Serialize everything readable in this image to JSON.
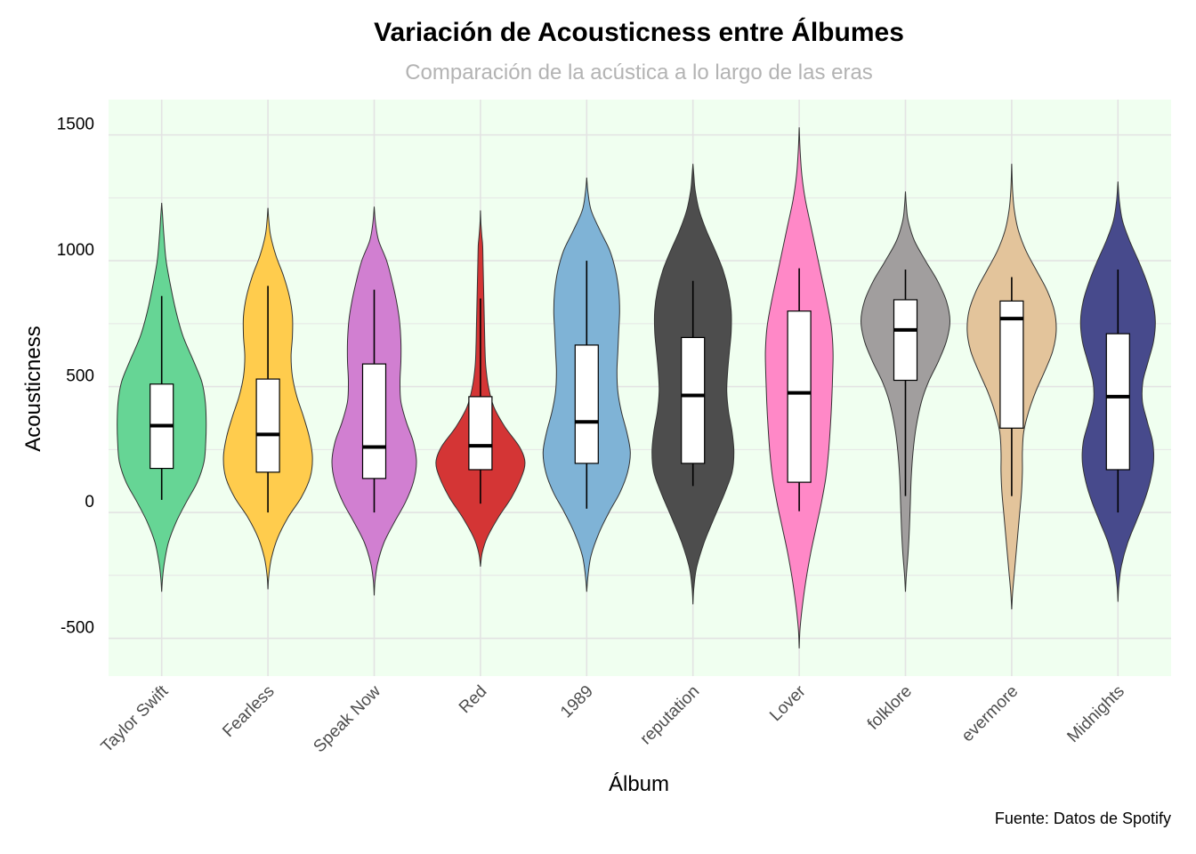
{
  "chart_data": {
    "type": "violin",
    "title": "Variación de Acousticness entre Álbumes",
    "subtitle": "Comparación de la acústica a lo largo de las eras",
    "xlabel": "Álbum",
    "ylabel": "Acousticness",
    "caption": "Fuente: Datos de Spotify",
    "ylim": [
      -650,
      1640
    ],
    "yticks": [
      -500,
      0,
      500,
      1000,
      1500
    ],
    "grid": true,
    "legend": "none",
    "panel_background": "#f0fff0",
    "categories": [
      "Taylor Swift",
      "Fearless",
      "Speak Now",
      "Red",
      "1989",
      "reputation",
      "Lover",
      "folklore",
      "evermore",
      "Midnights"
    ],
    "series": [
      {
        "album": "Taylor Swift",
        "color": "#66d595",
        "violin": {
          "ymin": -315,
          "ymax": 1230,
          "profile": [
            [
              -315,
              0
            ],
            [
              -260,
              0.02
            ],
            [
              -200,
              0.06
            ],
            [
              -120,
              0.15
            ],
            [
              -40,
              0.32
            ],
            [
              40,
              0.55
            ],
            [
              120,
              0.8
            ],
            [
              200,
              0.95
            ],
            [
              280,
              0.99
            ],
            [
              360,
              1.0
            ],
            [
              440,
              0.98
            ],
            [
              520,
              0.9
            ],
            [
              600,
              0.72
            ],
            [
              700,
              0.48
            ],
            [
              800,
              0.32
            ],
            [
              900,
              0.2
            ],
            [
              1000,
              0.1
            ],
            [
              1100,
              0.05
            ],
            [
              1180,
              0.02
            ],
            [
              1230,
              0
            ]
          ]
        },
        "box": {
          "min": 50,
          "q1": 175,
          "median": 345,
          "q3": 510,
          "max": 860
        }
      },
      {
        "album": "Fearless",
        "color": "#ffcc4d",
        "violin": {
          "ymin": -305,
          "ymax": 1210,
          "profile": [
            [
              -305,
              0
            ],
            [
              -250,
              0.02
            ],
            [
              -180,
              0.08
            ],
            [
              -100,
              0.22
            ],
            [
              -20,
              0.45
            ],
            [
              60,
              0.75
            ],
            [
              140,
              0.95
            ],
            [
              220,
              1.0
            ],
            [
              300,
              0.93
            ],
            [
              380,
              0.8
            ],
            [
              460,
              0.65
            ],
            [
              540,
              0.55
            ],
            [
              620,
              0.52
            ],
            [
              700,
              0.55
            ],
            [
              780,
              0.55
            ],
            [
              860,
              0.48
            ],
            [
              940,
              0.35
            ],
            [
              1020,
              0.18
            ],
            [
              1100,
              0.06
            ],
            [
              1160,
              0.02
            ],
            [
              1210,
              0
            ]
          ]
        },
        "box": {
          "min": 0,
          "q1": 160,
          "median": 310,
          "q3": 530,
          "max": 900
        }
      },
      {
        "album": "Speak Now",
        "color": "#d17fd1",
        "violin": {
          "ymin": -330,
          "ymax": 1215,
          "profile": [
            [
              -330,
              0
            ],
            [
              -270,
              0.02
            ],
            [
              -200,
              0.08
            ],
            [
              -120,
              0.22
            ],
            [
              -40,
              0.45
            ],
            [
              40,
              0.7
            ],
            [
              120,
              0.88
            ],
            [
              200,
              0.95
            ],
            [
              280,
              0.88
            ],
            [
              360,
              0.72
            ],
            [
              440,
              0.6
            ],
            [
              520,
              0.58
            ],
            [
              600,
              0.6
            ],
            [
              680,
              0.6
            ],
            [
              760,
              0.57
            ],
            [
              840,
              0.5
            ],
            [
              920,
              0.4
            ],
            [
              1000,
              0.28
            ],
            [
              1080,
              0.1
            ],
            [
              1150,
              0.03
            ],
            [
              1215,
              0
            ]
          ]
        },
        "box": {
          "min": 0,
          "q1": 135,
          "median": 260,
          "q3": 590,
          "max": 885
        }
      },
      {
        "album": "Red",
        "color": "#d43535",
        "violin": {
          "ymin": -215,
          "ymax": 1200,
          "profile": [
            [
              -215,
              0
            ],
            [
              -160,
              0.04
            ],
            [
              -100,
              0.15
            ],
            [
              -20,
              0.4
            ],
            [
              60,
              0.7
            ],
            [
              140,
              0.92
            ],
            [
              200,
              1.0
            ],
            [
              260,
              0.88
            ],
            [
              340,
              0.55
            ],
            [
              420,
              0.3
            ],
            [
              500,
              0.18
            ],
            [
              580,
              0.12
            ],
            [
              660,
              0.1
            ],
            [
              740,
              0.09
            ],
            [
              820,
              0.08
            ],
            [
              900,
              0.07
            ],
            [
              980,
              0.06
            ],
            [
              1060,
              0.05
            ],
            [
              1100,
              0.03
            ],
            [
              1150,
              0.01
            ],
            [
              1200,
              0
            ]
          ]
        },
        "box": {
          "min": 35,
          "q1": 170,
          "median": 265,
          "q3": 460,
          "max": 850
        }
      },
      {
        "album": "1989",
        "color": "#7fb3d6",
        "violin": {
          "ymin": -315,
          "ymax": 1330,
          "profile": [
            [
              -315,
              0
            ],
            [
              -250,
              0.03
            ],
            [
              -170,
              0.1
            ],
            [
              -80,
              0.28
            ],
            [
              0,
              0.5
            ],
            [
              80,
              0.75
            ],
            [
              160,
              0.92
            ],
            [
              240,
              0.98
            ],
            [
              320,
              0.9
            ],
            [
              400,
              0.78
            ],
            [
              480,
              0.7
            ],
            [
              560,
              0.68
            ],
            [
              640,
              0.7
            ],
            [
              720,
              0.72
            ],
            [
              800,
              0.74
            ],
            [
              880,
              0.72
            ],
            [
              960,
              0.65
            ],
            [
              1040,
              0.52
            ],
            [
              1120,
              0.3
            ],
            [
              1200,
              0.1
            ],
            [
              1270,
              0.03
            ],
            [
              1330,
              0
            ]
          ]
        },
        "box": {
          "min": 15,
          "q1": 195,
          "median": 360,
          "q3": 665,
          "max": 1000
        }
      },
      {
        "album": "reputation",
        "color": "#4d4d4d",
        "violin": {
          "ymin": -365,
          "ymax": 1385,
          "profile": [
            [
              -365,
              0
            ],
            [
              -300,
              0.02
            ],
            [
              -220,
              0.08
            ],
            [
              -120,
              0.25
            ],
            [
              -20,
              0.48
            ],
            [
              80,
              0.72
            ],
            [
              160,
              0.88
            ],
            [
              240,
              0.92
            ],
            [
              320,
              0.88
            ],
            [
              400,
              0.8
            ],
            [
              480,
              0.76
            ],
            [
              560,
              0.78
            ],
            [
              640,
              0.82
            ],
            [
              720,
              0.86
            ],
            [
              800,
              0.86
            ],
            [
              880,
              0.8
            ],
            [
              960,
              0.68
            ],
            [
              1040,
              0.5
            ],
            [
              1120,
              0.3
            ],
            [
              1200,
              0.14
            ],
            [
              1280,
              0.05
            ],
            [
              1340,
              0.02
            ],
            [
              1385,
              0
            ]
          ]
        },
        "box": {
          "min": 105,
          "q1": 195,
          "median": 465,
          "q3": 695,
          "max": 920
        }
      },
      {
        "album": "Lover",
        "color": "#ff88c7",
        "violin": {
          "ymin": -540,
          "ymax": 1530,
          "profile": [
            [
              -540,
              0
            ],
            [
              -460,
              0.02
            ],
            [
              -360,
              0.08
            ],
            [
              -260,
              0.16
            ],
            [
              -160,
              0.26
            ],
            [
              -60,
              0.38
            ],
            [
              40,
              0.5
            ],
            [
              140,
              0.6
            ],
            [
              240,
              0.66
            ],
            [
              340,
              0.7
            ],
            [
              440,
              0.73
            ],
            [
              540,
              0.75
            ],
            [
              640,
              0.76
            ],
            [
              740,
              0.72
            ],
            [
              840,
              0.62
            ],
            [
              940,
              0.5
            ],
            [
              1040,
              0.38
            ],
            [
              1140,
              0.26
            ],
            [
              1240,
              0.14
            ],
            [
              1340,
              0.06
            ],
            [
              1440,
              0.02
            ],
            [
              1530,
              0
            ]
          ]
        },
        "box": {
          "min": 5,
          "q1": 120,
          "median": 475,
          "q3": 800,
          "max": 970
        }
      },
      {
        "album": "folklore",
        "color": "#a19e9e",
        "violin": {
          "ymin": -315,
          "ymax": 1275,
          "profile": [
            [
              -315,
              0
            ],
            [
              -250,
              0.02
            ],
            [
              -160,
              0.06
            ],
            [
              -60,
              0.09
            ],
            [
              40,
              0.11
            ],
            [
              140,
              0.13
            ],
            [
              240,
              0.17
            ],
            [
              340,
              0.24
            ],
            [
              440,
              0.36
            ],
            [
              520,
              0.52
            ],
            [
              600,
              0.74
            ],
            [
              680,
              0.92
            ],
            [
              760,
              1.0
            ],
            [
              840,
              0.92
            ],
            [
              920,
              0.72
            ],
            [
              1000,
              0.45
            ],
            [
              1080,
              0.2
            ],
            [
              1160,
              0.06
            ],
            [
              1220,
              0.02
            ],
            [
              1275,
              0
            ]
          ]
        },
        "box": {
          "min": 65,
          "q1": 525,
          "median": 725,
          "q3": 845,
          "max": 965
        }
      },
      {
        "album": "evermore",
        "color": "#e3c49b",
        "violin": {
          "ymin": -385,
          "ymax": 1385,
          "profile": [
            [
              -385,
              0
            ],
            [
              -320,
              0.02
            ],
            [
              -240,
              0.06
            ],
            [
              -160,
              0.1
            ],
            [
              -80,
              0.14
            ],
            [
              0,
              0.18
            ],
            [
              80,
              0.22
            ],
            [
              160,
              0.24
            ],
            [
              240,
              0.24
            ],
            [
              320,
              0.27
            ],
            [
              400,
              0.38
            ],
            [
              480,
              0.54
            ],
            [
              560,
              0.74
            ],
            [
              640,
              0.92
            ],
            [
              720,
              1.0
            ],
            [
              800,
              0.96
            ],
            [
              880,
              0.8
            ],
            [
              960,
              0.56
            ],
            [
              1040,
              0.32
            ],
            [
              1120,
              0.15
            ],
            [
              1200,
              0.06
            ],
            [
              1280,
              0.02
            ],
            [
              1385,
              0
            ]
          ]
        },
        "box": {
          "min": 65,
          "q1": 335,
          "median": 770,
          "q3": 840,
          "max": 935
        }
      },
      {
        "album": "Midnights",
        "color": "#474a8c",
        "violin": {
          "ymin": -355,
          "ymax": 1315,
          "profile": [
            [
              -355,
              0
            ],
            [
              -290,
              0.02
            ],
            [
              -210,
              0.08
            ],
            [
              -120,
              0.22
            ],
            [
              -40,
              0.4
            ],
            [
              40,
              0.58
            ],
            [
              120,
              0.72
            ],
            [
              200,
              0.8
            ],
            [
              280,
              0.78
            ],
            [
              360,
              0.66
            ],
            [
              440,
              0.55
            ],
            [
              520,
              0.56
            ],
            [
              600,
              0.68
            ],
            [
              680,
              0.8
            ],
            [
              760,
              0.84
            ],
            [
              840,
              0.78
            ],
            [
              920,
              0.64
            ],
            [
              1000,
              0.46
            ],
            [
              1080,
              0.26
            ],
            [
              1160,
              0.1
            ],
            [
              1240,
              0.03
            ],
            [
              1315,
              0
            ]
          ]
        },
        "box": {
          "min": 0,
          "q1": 170,
          "median": 460,
          "q3": 710,
          "max": 965
        }
      }
    ]
  }
}
